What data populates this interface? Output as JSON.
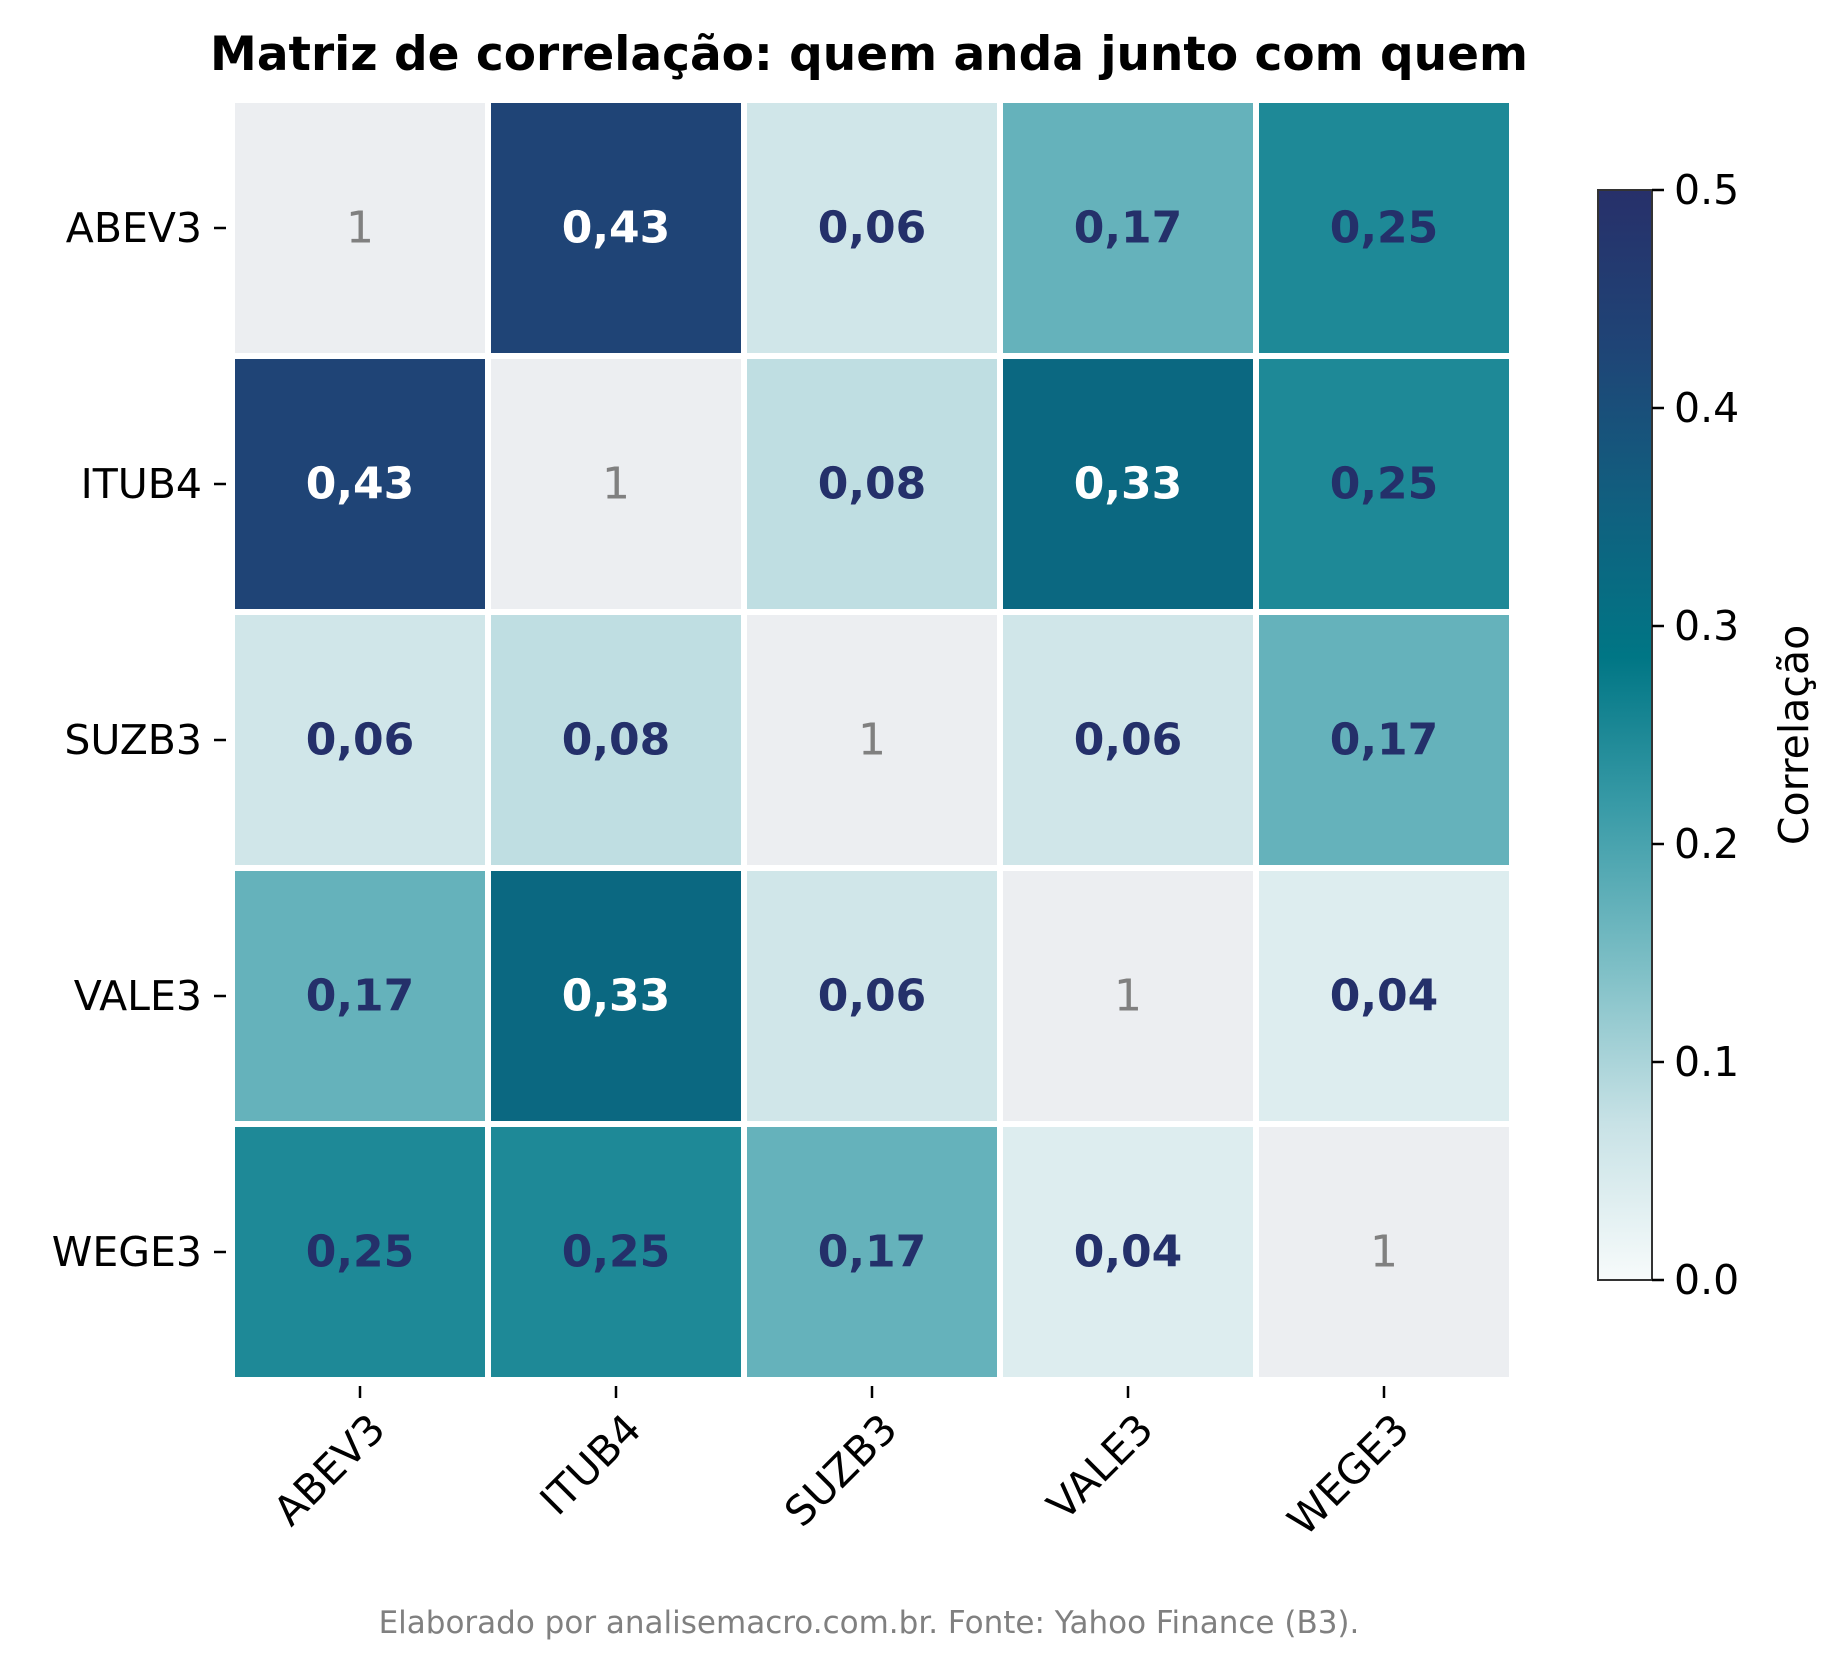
{
  "chart_data": {
    "type": "heatmap",
    "title": "Matriz de correlação: quem anda junto com quem",
    "rows": [
      "ABEV3",
      "ITUB4",
      "SUZB3",
      "VALE3",
      "WEGE3"
    ],
    "cols": [
      "ABEV3",
      "ITUB4",
      "SUZB3",
      "VALE3",
      "WEGE3"
    ],
    "values": [
      [
        1,
        0.43,
        0.06,
        0.17,
        0.25
      ],
      [
        0.43,
        1,
        0.08,
        0.33,
        0.25
      ],
      [
        0.06,
        0.08,
        1,
        0.06,
        0.17
      ],
      [
        0.17,
        0.33,
        0.06,
        1,
        0.04
      ],
      [
        0.25,
        0.25,
        0.17,
        0.04,
        1
      ]
    ],
    "cell_labels": [
      [
        "1",
        "0,43",
        "0,06",
        "0,17",
        "0,25"
      ],
      [
        "0,43",
        "1",
        "0,08",
        "0,33",
        "0,25"
      ],
      [
        "0,06",
        "0,08",
        "1",
        "0,06",
        "0,17"
      ],
      [
        "0,17",
        "0,33",
        "0,06",
        "1",
        "0,04"
      ],
      [
        "0,25",
        "0,25",
        "0,17",
        "0,04",
        "1"
      ]
    ],
    "colorbar": {
      "label": "Correlação",
      "range": [
        0.0,
        0.5
      ],
      "ticks": [
        "0.0",
        "0.1",
        "0.2",
        "0.3",
        "0.4",
        "0.5"
      ],
      "tick_values": [
        0.0,
        0.1,
        0.2,
        0.3,
        0.4,
        0.5
      ]
    },
    "colors": {
      "diagonal_fill": "#eceef1",
      "diagonal_text": "#808080",
      "dark_text": "#24306a",
      "light_text": "#ffffff",
      "grid_line": "#ffffff",
      "stops": [
        "#f7fbfb",
        "#c8e2e6",
        "#7ebfc6",
        "#3b9ca8",
        "#007685",
        "#115f7f",
        "#1f4476",
        "#27306a"
      ]
    }
  },
  "footer": "Elaborado por analisemacro.com.br. Fonte: Yahoo Finance (B3)."
}
